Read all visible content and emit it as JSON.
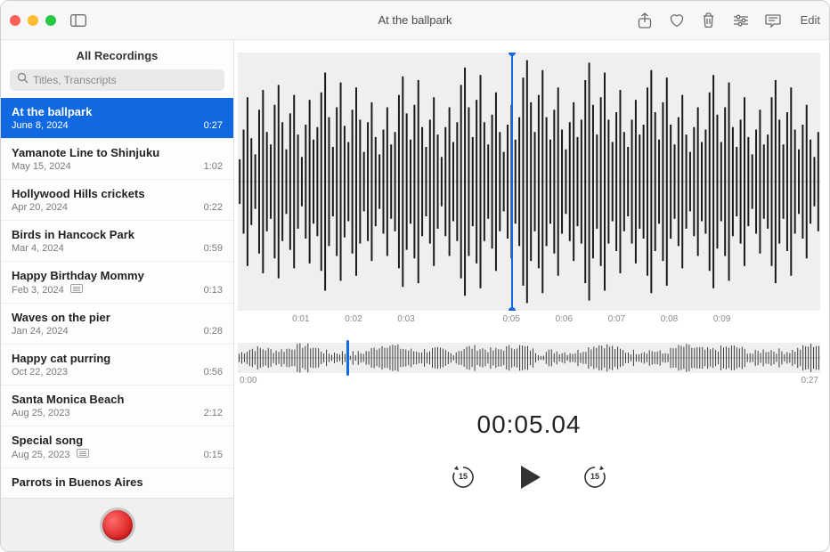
{
  "window": {
    "title": "At the ballpark",
    "traffic_colors": {
      "close": "#ff5f57",
      "minimize": "#febc2e",
      "zoom": "#28c840"
    },
    "edit_label": "Edit"
  },
  "sidebar": {
    "header": "All Recordings",
    "search_placeholder": "Titles, Transcripts",
    "items": [
      {
        "title": "At the ballpark",
        "date": "June 8, 2024",
        "duration": "0:27",
        "selected": true,
        "transcript": false
      },
      {
        "title": "Yamanote Line to Shinjuku",
        "date": "May 15, 2024",
        "duration": "1:02",
        "selected": false,
        "transcript": false
      },
      {
        "title": "Hollywood Hills crickets",
        "date": "Apr 20, 2024",
        "duration": "0:22",
        "selected": false,
        "transcript": false
      },
      {
        "title": "Birds in Hancock Park",
        "date": "Mar 4, 2024",
        "duration": "0:59",
        "selected": false,
        "transcript": false
      },
      {
        "title": "Happy Birthday Mommy",
        "date": "Feb 3, 2024",
        "duration": "0:13",
        "selected": false,
        "transcript": true
      },
      {
        "title": "Waves on the pier",
        "date": "Jan 24, 2024",
        "duration": "0:28",
        "selected": false,
        "transcript": false
      },
      {
        "title": "Happy cat purring",
        "date": "Oct 22, 2023",
        "duration": "0:56",
        "selected": false,
        "transcript": false
      },
      {
        "title": "Santa Monica Beach",
        "date": "Aug 25, 2023",
        "duration": "2:12",
        "selected": false,
        "transcript": false
      },
      {
        "title": "Special song",
        "date": "Aug 25, 2023",
        "duration": "0:15",
        "selected": false,
        "transcript": true
      },
      {
        "title": "Parrots in Buenos Aires",
        "date": "",
        "duration": "",
        "selected": false,
        "transcript": false
      }
    ]
  },
  "detail": {
    "timecode": "00:05.04",
    "skip_amount": "15",
    "big_axis": [
      "",
      "0:01",
      "0:02",
      "0:03",
      "",
      "0:05",
      "0:06",
      "0:07",
      "0:08",
      "0:09",
      ""
    ],
    "mini_axis": {
      "start": "0:00",
      "end": "0:27"
    },
    "playhead_big_pct": 47,
    "playhead_mini_pct": 18.7,
    "waveform_big": {
      "bars": 150,
      "bar_color": "#1a1a1a",
      "background": "#efefef",
      "amplitudes": [
        18,
        42,
        68,
        35,
        22,
        58,
        74,
        40,
        30,
        62,
        78,
        48,
        26,
        55,
        70,
        38,
        20,
        46,
        66,
        34,
        44,
        72,
        88,
        52,
        28,
        60,
        80,
        45,
        32,
        58,
        76,
        50,
        24,
        48,
        64,
        36,
        22,
        42,
        60,
        30,
        40,
        70,
        85,
        55,
        34,
        62,
        82,
        44,
        28,
        50,
        68,
        38,
        20,
        44,
        60,
        32,
        48,
        78,
        92,
        60,
        36,
        66,
        86,
        48,
        30,
        54,
        72,
        40,
        24,
        46,
        62,
        34,
        52,
        84,
        98,
        64,
        40,
        70,
        90,
        52,
        34,
        58,
        76,
        42,
        26,
        48,
        64,
        36,
        50,
        82,
        96,
        62,
        38,
        68,
        88,
        50,
        32,
        56,
        74,
        40,
        28,
        50,
        66,
        38,
        46,
        76,
        90,
        56,
        34,
        64,
        84,
        46,
        30,
        52,
        70,
        38,
        24,
        44,
        60,
        32,
        42,
        72,
        86,
        54,
        32,
        60,
        80,
        44,
        28,
        50,
        68,
        36,
        22,
        42,
        58,
        30,
        38,
        68,
        82,
        50,
        30,
        56,
        76,
        42,
        26,
        46,
        62,
        34,
        20,
        40
      ]
    },
    "waveform_mini": {
      "bars": 220,
      "bar_color": "#3a3a3a",
      "amplitudes_seed": 7
    },
    "colors": {
      "accent": "#1069e0"
    }
  }
}
